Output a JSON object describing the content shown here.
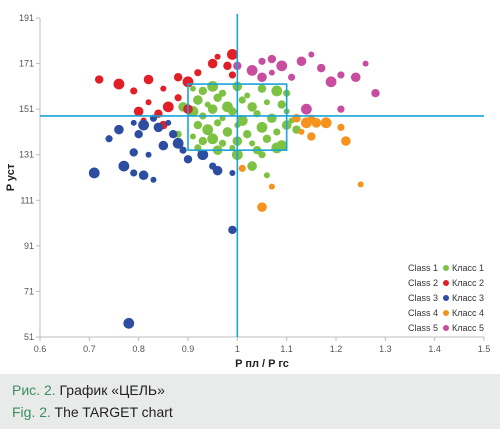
{
  "chart_data": {
    "type": "scatter",
    "title": "",
    "xlabel": "P пл / P гс",
    "ylabel": "P уст",
    "xlim": [
      0.6,
      1.5
    ],
    "ylim": [
      51,
      191
    ],
    "xticks": [
      "0.6",
      "0.7",
      "0.8",
      "0.9",
      "1",
      "1.1",
      "1.2",
      "1.3",
      "1.4",
      "1.5"
    ],
    "yticks": [
      "51",
      "71",
      "91",
      "111",
      "131",
      "151",
      "171",
      "191"
    ],
    "grid": false,
    "legend_position": "bottom-right",
    "reference_lines": {
      "vertical_x": 1.0,
      "horizontal_y": 148
    },
    "target_box": {
      "x": [
        0.9,
        1.1
      ],
      "y": [
        133,
        162
      ]
    },
    "series": [
      {
        "name": "Class 1",
        "label_ru": "Класс 1",
        "color": "#7dc243",
        "points": [
          [
            0.91,
            160
          ],
          [
            0.93,
            159
          ],
          [
            0.95,
            161
          ],
          [
            0.97,
            158
          ],
          [
            1.0,
            161
          ],
          [
            1.02,
            157
          ],
          [
            1.05,
            160
          ],
          [
            1.08,
            159
          ],
          [
            1.1,
            158
          ],
          [
            0.92,
            155
          ],
          [
            0.94,
            153
          ],
          [
            0.96,
            156
          ],
          [
            0.98,
            152
          ],
          [
            1.01,
            155
          ],
          [
            1.03,
            152
          ],
          [
            1.06,
            154
          ],
          [
            1.09,
            153
          ],
          [
            0.91,
            150
          ],
          [
            0.93,
            148
          ],
          [
            0.95,
            151
          ],
          [
            0.97,
            147
          ],
          [
            0.99,
            150
          ],
          [
            1.01,
            146
          ],
          [
            1.04,
            149
          ],
          [
            1.07,
            147
          ],
          [
            1.1,
            150
          ],
          [
            0.92,
            144
          ],
          [
            0.94,
            142
          ],
          [
            0.96,
            145
          ],
          [
            0.98,
            141
          ],
          [
            1.0,
            144
          ],
          [
            1.02,
            140
          ],
          [
            1.05,
            143
          ],
          [
            1.08,
            141
          ],
          [
            1.1,
            144
          ],
          [
            0.91,
            139
          ],
          [
            0.93,
            137
          ],
          [
            0.95,
            138
          ],
          [
            0.97,
            136
          ],
          [
            1.0,
            137
          ],
          [
            1.03,
            136
          ],
          [
            1.06,
            138
          ],
          [
            1.09,
            135
          ],
          [
            0.92,
            134
          ],
          [
            0.96,
            133
          ],
          [
            0.99,
            134
          ],
          [
            1.04,
            133
          ],
          [
            1.08,
            134
          ],
          [
            0.88,
            140
          ],
          [
            0.89,
            152
          ],
          [
            1.11,
            146
          ],
          [
            1.12,
            142
          ],
          [
            1.0,
            131
          ],
          [
            1.05,
            131
          ],
          [
            1.03,
            126
          ],
          [
            1.06,
            122
          ]
        ]
      },
      {
        "name": "Class 2",
        "label_ru": "Класс 2",
        "color": "#e21e26",
        "points": [
          [
            0.72,
            164
          ],
          [
            0.76,
            162
          ],
          [
            0.79,
            159
          ],
          [
            0.82,
            164
          ],
          [
            0.85,
            160
          ],
          [
            0.88,
            165
          ],
          [
            0.9,
            163
          ],
          [
            0.92,
            167
          ],
          [
            0.95,
            171
          ],
          [
            0.96,
            174
          ],
          [
            0.98,
            170
          ],
          [
            0.99,
            175
          ],
          [
            0.99,
            166
          ],
          [
            0.8,
            150
          ],
          [
            0.82,
            154
          ],
          [
            0.84,
            149
          ],
          [
            0.86,
            152
          ],
          [
            0.88,
            156
          ],
          [
            0.9,
            151
          ],
          [
            0.81,
            146
          ],
          [
            0.85,
            144
          ]
        ]
      },
      {
        "name": "Class 3",
        "label_ru": "Класс 3",
        "color": "#2d4ea0",
        "points": [
          [
            0.71,
            123
          ],
          [
            0.74,
            138
          ],
          [
            0.76,
            142
          ],
          [
            0.79,
            145
          ],
          [
            0.8,
            140
          ],
          [
            0.81,
            144
          ],
          [
            0.83,
            147
          ],
          [
            0.84,
            143
          ],
          [
            0.86,
            145
          ],
          [
            0.87,
            140
          ],
          [
            0.88,
            136
          ],
          [
            0.89,
            133
          ],
          [
            0.85,
            135
          ],
          [
            0.82,
            131
          ],
          [
            0.79,
            132
          ],
          [
            0.77,
            126
          ],
          [
            0.79,
            123
          ],
          [
            0.81,
            122
          ],
          [
            0.83,
            120
          ],
          [
            0.9,
            129
          ],
          [
            0.93,
            131
          ],
          [
            0.95,
            126
          ],
          [
            0.96,
            124
          ],
          [
            0.99,
            123
          ],
          [
            0.99,
            98
          ],
          [
            0.78,
            57
          ]
        ]
      },
      {
        "name": "Class 4",
        "label_ru": "Класс 4",
        "color": "#f6921e",
        "points": [
          [
            1.01,
            125
          ],
          [
            1.05,
            108
          ],
          [
            1.07,
            117
          ],
          [
            1.12,
            147
          ],
          [
            1.14,
            145
          ],
          [
            1.15,
            147
          ],
          [
            1.16,
            145
          ],
          [
            1.13,
            141
          ],
          [
            1.15,
            139
          ],
          [
            1.18,
            145
          ],
          [
            1.21,
            143
          ],
          [
            1.22,
            137
          ],
          [
            1.25,
            118
          ]
        ]
      },
      {
        "name": "Class 5",
        "label_ru": "Класс 5",
        "color": "#c84d9e",
        "points": [
          [
            1.0,
            170
          ],
          [
            1.03,
            168
          ],
          [
            1.05,
            172
          ],
          [
            1.05,
            165
          ],
          [
            1.07,
            167
          ],
          [
            1.07,
            173
          ],
          [
            1.09,
            170
          ],
          [
            1.11,
            165
          ],
          [
            1.13,
            172
          ],
          [
            1.15,
            175
          ],
          [
            1.17,
            169
          ],
          [
            1.19,
            163
          ],
          [
            1.21,
            166
          ],
          [
            1.24,
            165
          ],
          [
            1.26,
            171
          ],
          [
            1.28,
            158
          ],
          [
            1.14,
            151
          ],
          [
            1.21,
            151
          ]
        ]
      }
    ]
  },
  "caption": {
    "ru_prefix": "Рис. 2.",
    "ru_text": "График «ЦЕЛЬ»",
    "en_prefix": "Fig. 2.",
    "en_text": "The TARGET chart"
  }
}
